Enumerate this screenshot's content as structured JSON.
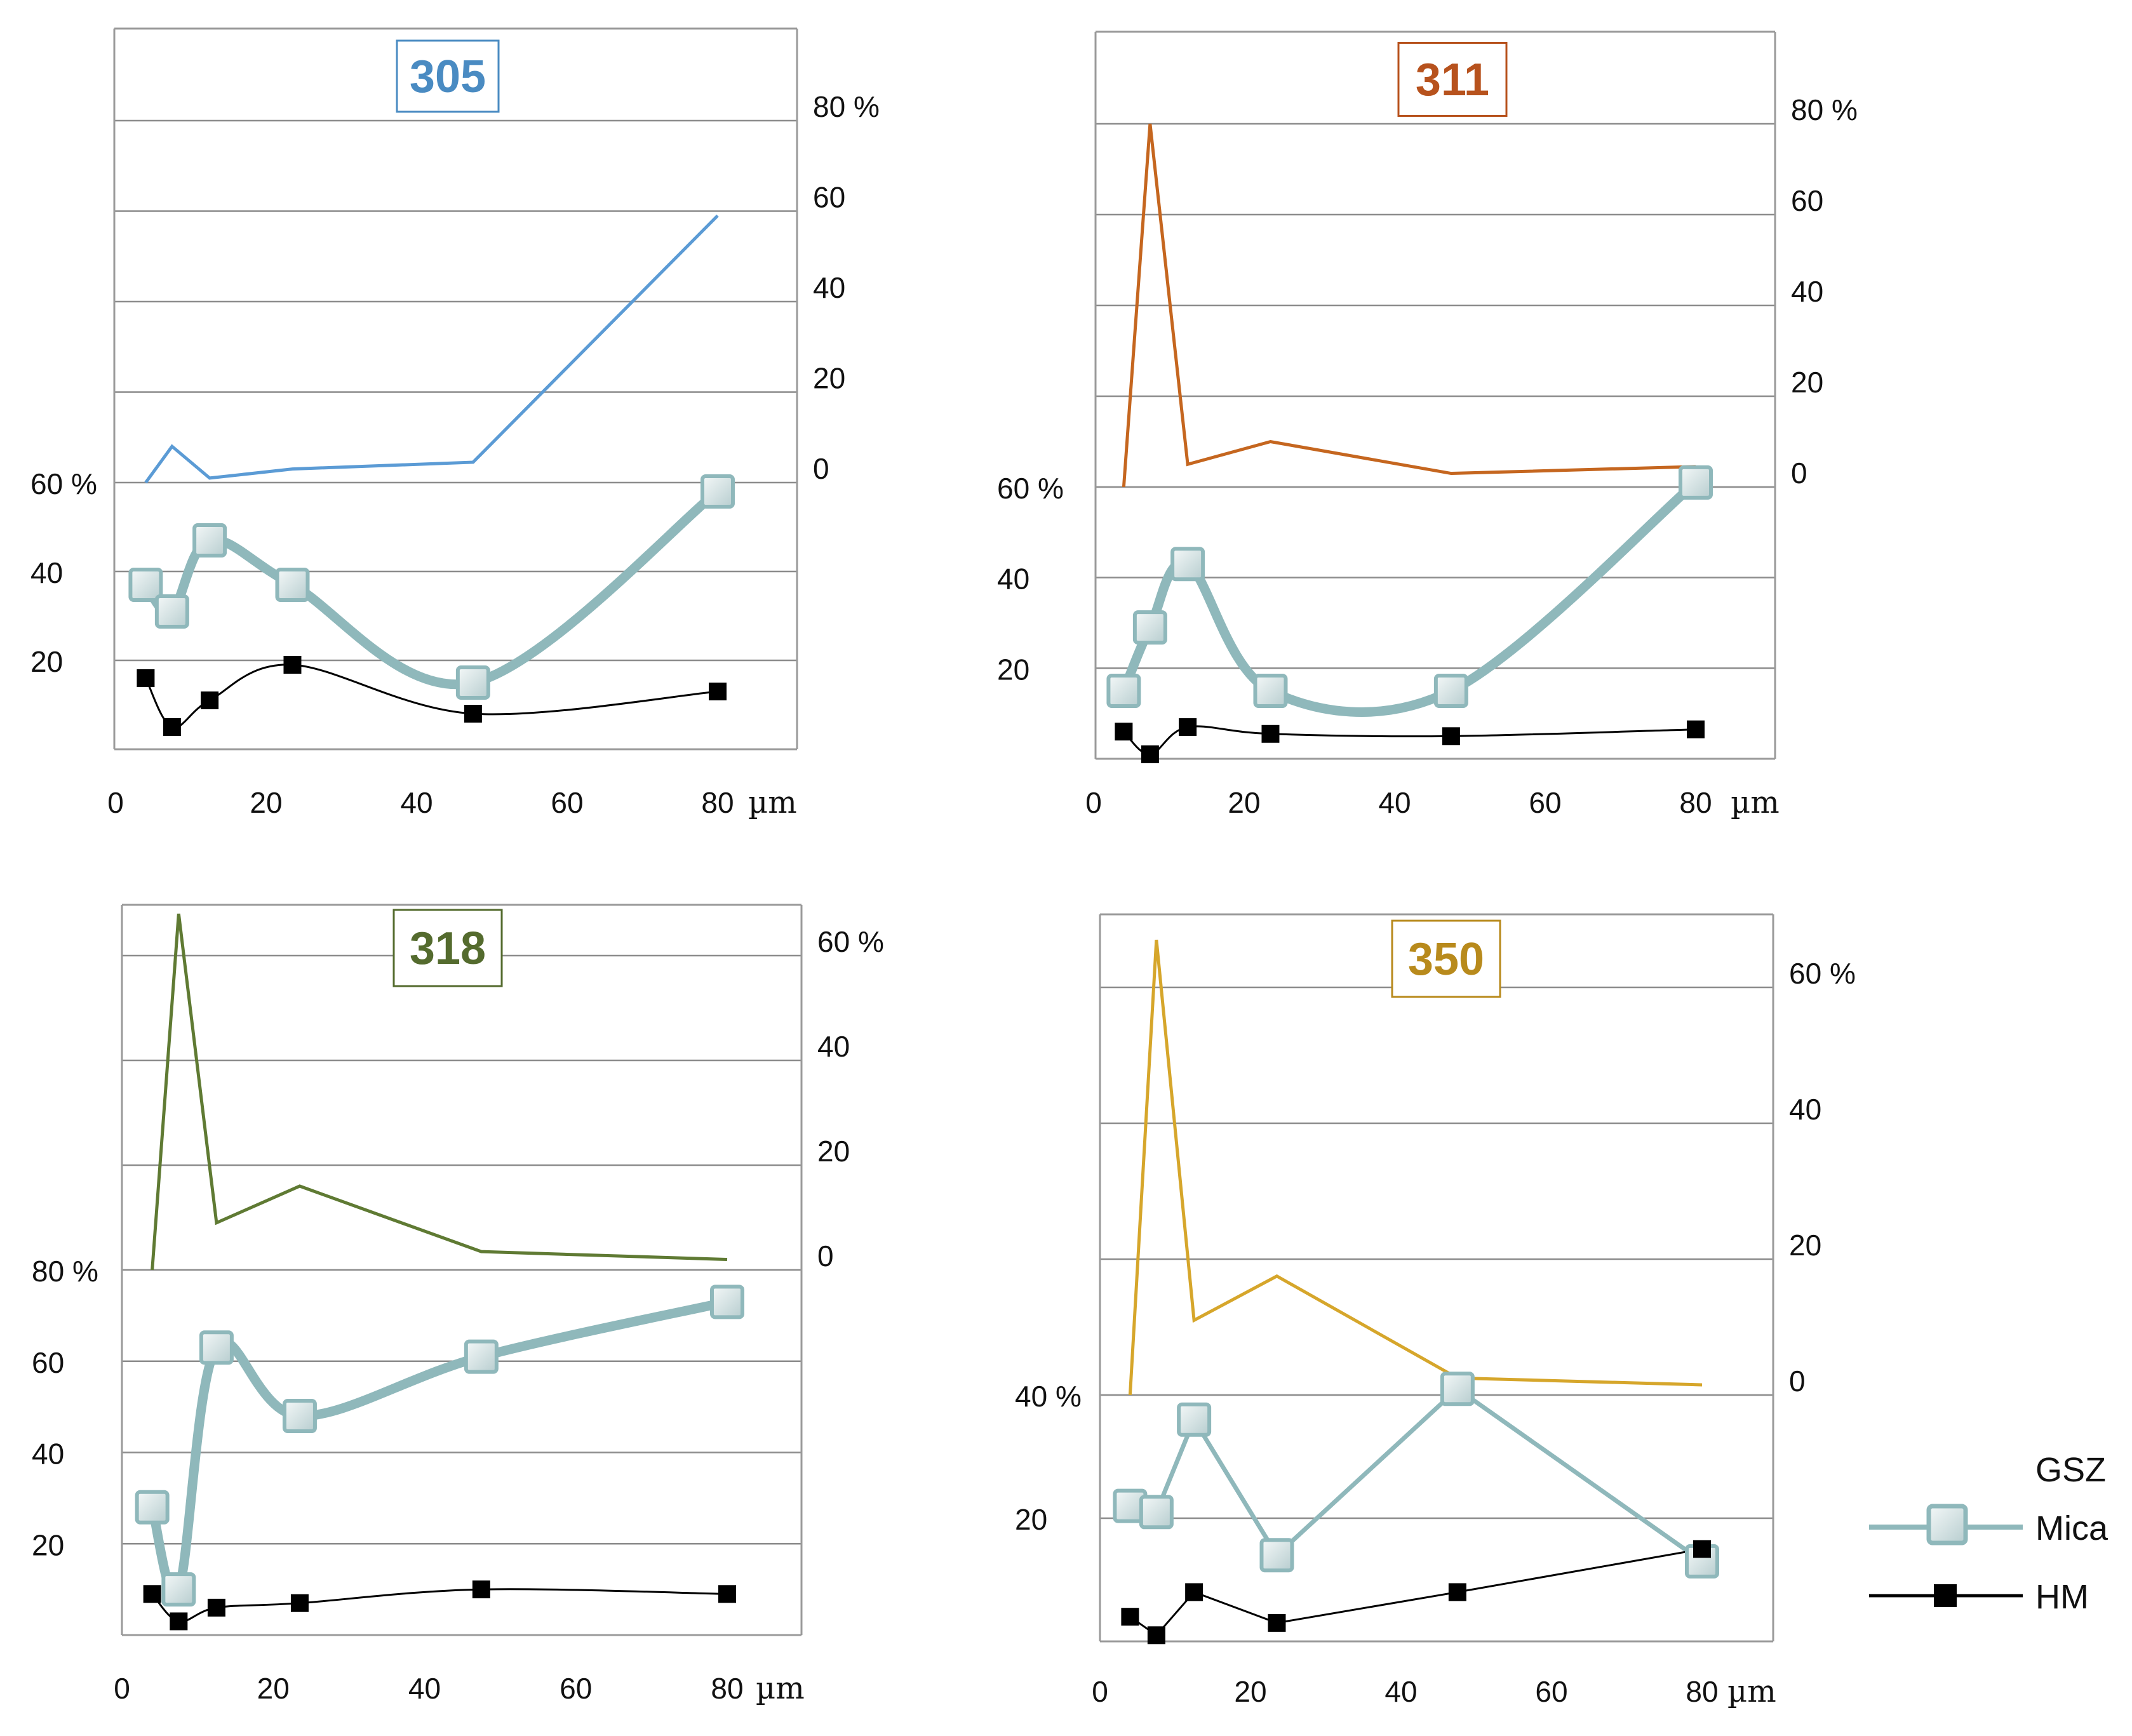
{
  "colors": {
    "mica": "#8fb8bb",
    "hm": "#000000",
    "grid": "#8c8c8c",
    "axis": "#9a9a9a",
    "text": "#111111"
  },
  "chart_data": [
    {
      "type": "line",
      "title": "305",
      "title_color": "#4a8bc2",
      "gsz_color": "#5b9bd5",
      "xlabel": "µm",
      "x_ticks": [
        "0",
        "20",
        "40",
        "60",
        "80"
      ],
      "upper_ticks": [
        "80 %",
        "60",
        "40",
        "20",
        "0"
      ],
      "lower_ticks": [
        "60 %",
        "40",
        "20"
      ],
      "upper_ylim": [
        0,
        80
      ],
      "lower_ylim": [
        0,
        60
      ],
      "mica_style": "smooth",
      "series": [
        {
          "name": "GSZ",
          "x": [
            4,
            7.5,
            12.5,
            23.5,
            47.5,
            80
          ],
          "values": [
            0,
            8,
            1,
            3,
            4.5,
            59
          ]
        },
        {
          "name": "Mica",
          "x": [
            4,
            7.5,
            12.5,
            23.5,
            47.5,
            80
          ],
          "values": [
            37,
            31,
            47,
            37,
            15,
            58
          ]
        },
        {
          "name": "HM",
          "x": [
            4,
            7.5,
            12.5,
            23.5,
            47.5,
            80
          ],
          "values": [
            16,
            5,
            11,
            19,
            8,
            13
          ]
        }
      ]
    },
    {
      "type": "line",
      "title": "311",
      "title_color": "#b7521d",
      "gsz_color": "#c5661f",
      "xlabel": "µm",
      "x_ticks": [
        "0",
        "20",
        "40",
        "60",
        "80"
      ],
      "upper_ticks": [
        "80 %",
        "60",
        "40",
        "20",
        "0"
      ],
      "lower_ticks": [
        "60 %",
        "40",
        "20"
      ],
      "upper_ylim": [
        0,
        80
      ],
      "lower_ylim": [
        0,
        60
      ],
      "mica_style": "smooth",
      "series": [
        {
          "name": "GSZ",
          "x": [
            4,
            7.5,
            12.5,
            23.5,
            47.5,
            80
          ],
          "values": [
            0,
            80,
            5,
            10,
            3,
            4.5
          ]
        },
        {
          "name": "Mica",
          "x": [
            4,
            7.5,
            12.5,
            23.5,
            47.5,
            80
          ],
          "values": [
            15,
            29,
            43,
            15,
            15,
            61
          ]
        },
        {
          "name": "HM",
          "x": [
            4,
            7.5,
            12.5,
            23.5,
            47.5,
            80
          ],
          "values": [
            6,
            1,
            7,
            5.5,
            5,
            6.5
          ]
        }
      ]
    },
    {
      "type": "line",
      "title": "318",
      "title_color": "#546b2e",
      "gsz_color": "#5f7a33",
      "xlabel": "µm",
      "x_ticks": [
        "0",
        "20",
        "40",
        "60",
        "80"
      ],
      "upper_ticks": [
        "60 %",
        "40",
        "20",
        "0"
      ],
      "lower_ticks": [
        "80 %",
        "60",
        "40",
        "20"
      ],
      "upper_ylim": [
        0,
        60
      ],
      "lower_ylim": [
        0,
        80
      ],
      "mica_style": "smooth",
      "series": [
        {
          "name": "GSZ",
          "x": [
            4,
            7.5,
            12.5,
            23.5,
            47.5,
            80
          ],
          "values": [
            0,
            68,
            9,
            16,
            3.5,
            2
          ]
        },
        {
          "name": "Mica",
          "x": [
            4,
            7.5,
            12.5,
            23.5,
            47.5,
            80
          ],
          "values": [
            28,
            10,
            63,
            48,
            61,
            73
          ]
        },
        {
          "name": "HM",
          "x": [
            4,
            7.5,
            12.5,
            23.5,
            47.5,
            80
          ],
          "values": [
            9,
            3,
            6,
            7,
            10,
            9
          ]
        }
      ]
    },
    {
      "type": "line",
      "title": "350",
      "title_color": "#b88a1c",
      "gsz_color": "#d6a62b",
      "xlabel": "µm",
      "x_ticks": [
        "0",
        "20",
        "40",
        "60",
        "80"
      ],
      "upper_ticks": [
        "60 %",
        "40",
        "20",
        "0"
      ],
      "lower_ticks": [
        "40 %",
        "20"
      ],
      "upper_ylim": [
        0,
        60
      ],
      "lower_ylim": [
        0,
        40
      ],
      "mica_style": "straight",
      "series": [
        {
          "name": "GSZ",
          "x": [
            4,
            7.5,
            12.5,
            23.5,
            47.5,
            80
          ],
          "values": [
            0,
            67,
            11,
            17.5,
            2.5,
            1.5
          ]
        },
        {
          "name": "Mica",
          "x": [
            4,
            7.5,
            12.5,
            23.5,
            47.5,
            80
          ],
          "values": [
            22,
            21,
            36,
            14,
            41,
            13
          ]
        },
        {
          "name": "HM",
          "x": [
            4,
            7.5,
            12.5,
            23.5,
            47.5,
            80
          ],
          "values": [
            4,
            1,
            8,
            3,
            8,
            15
          ]
        }
      ]
    }
  ],
  "legend": {
    "gsz_label": "GSZ",
    "mica_label": "Mica",
    "hm_label": "HM",
    "gsz_gradient": [
      "#5b9bd5",
      "#c5661f",
      "#5f7a33"
    ]
  }
}
